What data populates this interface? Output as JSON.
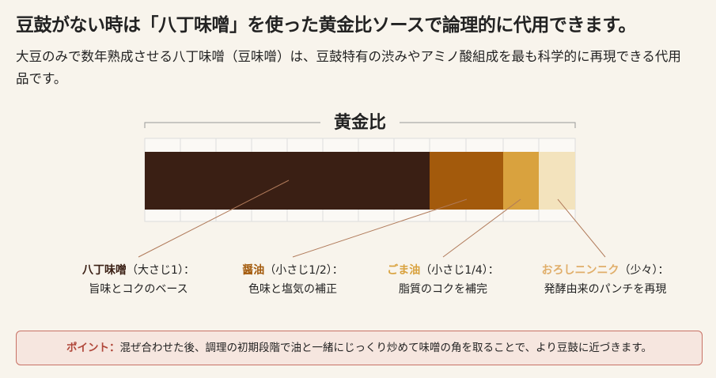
{
  "header": {
    "title": "豆鼓がない時は「八丁味噌」を使った黄金比ソースで論理的に代用できます。",
    "subtitle": "大豆のみで数年熟成させる八丁味噌（豆味噌）は、豆鼓特有の渋みやアミノ酸組成を最も科学的に再現できる代用品です。"
  },
  "diagram": {
    "label": "黄金比",
    "items": [
      {
        "name": "八丁味噌",
        "amount": "（大さじ1）：",
        "description": "旨味とコクのベース"
      },
      {
        "name": "醤油",
        "amount": "（小さじ1/2）：",
        "description": "色味と塩気の補正"
      },
      {
        "name": "ごま油",
        "amount": "（小さじ1/4）：",
        "description": "脂質のコクを補完"
      },
      {
        "name": "おろしニンニク",
        "amount": "（少々）：",
        "description": "発酵由来のパンチを再現"
      }
    ]
  },
  "note": {
    "label": "ポイント：",
    "text": "混ぜ合わせた後、調理の初期段階で油と一緒にじっくり炒めて味噌の角を取ることで、より豆鼓に近づきます。"
  }
}
